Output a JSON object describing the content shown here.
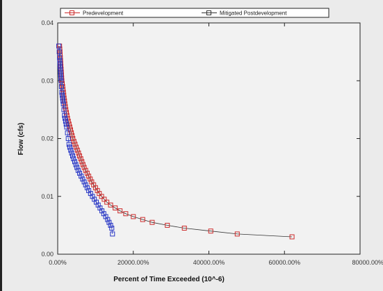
{
  "chart_data": {
    "type": "scatter",
    "title": "",
    "xlabel": "Percent of Time Exceeded (10^-6)",
    "ylabel": "Flow (cfs)",
    "xlim": [
      0,
      80000
    ],
    "ylim": [
      0,
      0.04
    ],
    "x_ticks": [
      {
        "value": 0,
        "label": "0.00%"
      },
      {
        "value": 20000,
        "label": "20000.00%"
      },
      {
        "value": 40000,
        "label": "40000.00%"
      },
      {
        "value": 60000,
        "label": "60000.00%"
      },
      {
        "value": 80000,
        "label": "80000.00%"
      }
    ],
    "y_ticks": [
      {
        "value": 0,
        "label": "0.00"
      },
      {
        "value": 0.01,
        "label": "0.01"
      },
      {
        "value": 0.02,
        "label": "0.02"
      },
      {
        "value": 0.03,
        "label": "0.03"
      },
      {
        "value": 0.04,
        "label": "0.04"
      }
    ],
    "grid": false,
    "legend_position": "top",
    "series": [
      {
        "name": "Predevelopment",
        "color": "#cc2a2a",
        "marker": "square",
        "line": true,
        "x": [
          500,
          550,
          600,
          650,
          700,
          750,
          800,
          850,
          900,
          950,
          1000,
          1050,
          1100,
          1200,
          1300,
          1400,
          1500,
          1600,
          1700,
          1800,
          1900,
          2000,
          2150,
          2300,
          2450,
          2600,
          2800,
          3000,
          3200,
          3400,
          3600,
          3800,
          4000,
          4300,
          4600,
          4900,
          5200,
          5500,
          5800,
          6100,
          6400,
          6700,
          7000,
          7400,
          7800,
          8200,
          8600,
          9000,
          9500,
          10000,
          10500,
          11000,
          11600,
          12300,
          13000,
          14000,
          15200,
          16500,
          18000,
          20000,
          22500,
          25000,
          29000,
          33500,
          40500,
          47500,
          62000
        ],
        "y": [
          0.036,
          0.0355,
          0.035,
          0.0345,
          0.034,
          0.0335,
          0.033,
          0.0325,
          0.032,
          0.0315,
          0.031,
          0.0305,
          0.03,
          0.0295,
          0.029,
          0.0285,
          0.028,
          0.0275,
          0.027,
          0.0265,
          0.026,
          0.0255,
          0.025,
          0.0245,
          0.024,
          0.0235,
          0.023,
          0.0225,
          0.022,
          0.0215,
          0.021,
          0.0205,
          0.02,
          0.0195,
          0.019,
          0.0185,
          0.018,
          0.0175,
          0.017,
          0.0165,
          0.016,
          0.0155,
          0.015,
          0.0145,
          0.014,
          0.0135,
          0.013,
          0.0125,
          0.012,
          0.0115,
          0.011,
          0.0105,
          0.01,
          0.0095,
          0.009,
          0.0085,
          0.008,
          0.0075,
          0.007,
          0.0065,
          0.006,
          0.0055,
          0.005,
          0.0045,
          0.004,
          0.0035,
          0.003
        ]
      },
      {
        "name": "Mitigated Postdevelopment",
        "color": "#2433c4",
        "marker": "square",
        "line": true,
        "x": [
          300,
          400,
          500,
          550,
          600,
          650,
          700,
          750,
          800,
          850,
          900,
          1000,
          1100,
          1200,
          1300,
          1400,
          1500,
          1650,
          1800,
          1950,
          2100,
          2250,
          2400,
          2600,
          2800,
          3000,
          3200,
          3450,
          3700,
          3950,
          4200,
          4500,
          4800,
          5100,
          5400,
          5800,
          6200,
          6600,
          7000,
          7400,
          7800,
          8200,
          8700,
          9200,
          9700,
          10200,
          10700,
          11200,
          11700,
          12200,
          12700,
          13200,
          13600,
          14000,
          14300,
          14500
        ],
        "y": [
          0.036,
          0.035,
          0.034,
          0.0335,
          0.033,
          0.0325,
          0.032,
          0.0315,
          0.031,
          0.0305,
          0.03,
          0.029,
          0.028,
          0.0275,
          0.027,
          0.0265,
          0.026,
          0.025,
          0.024,
          0.0235,
          0.023,
          0.0225,
          0.022,
          0.021,
          0.02,
          0.019,
          0.0185,
          0.018,
          0.0175,
          0.017,
          0.0165,
          0.016,
          0.0155,
          0.015,
          0.0145,
          0.014,
          0.0135,
          0.013,
          0.0125,
          0.012,
          0.0115,
          0.011,
          0.0105,
          0.01,
          0.0095,
          0.009,
          0.0085,
          0.008,
          0.0075,
          0.007,
          0.0065,
          0.006,
          0.0055,
          0.005,
          0.0045,
          0.0035
        ]
      }
    ]
  }
}
